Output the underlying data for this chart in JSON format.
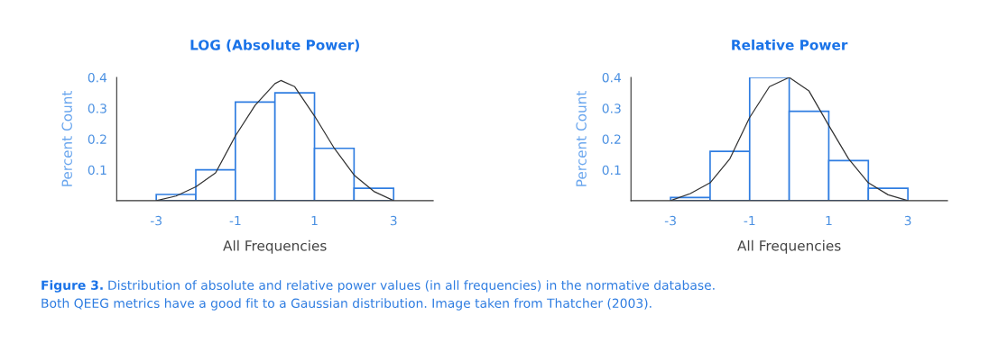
{
  "chart_data": [
    {
      "type": "histogram",
      "title": "LOG (Absolute Power)",
      "xlabel": "All Frequencies",
      "ylabel": "Percent Count",
      "bins": [
        -3,
        -2,
        -1,
        0,
        1,
        2,
        3
      ],
      "series": [
        {
          "color": "#2f7de1",
          "values": [
            0.02,
            0.1,
            0.32,
            0.35,
            0.17,
            0.04
          ]
        },
        {
          "type": "line",
          "color": "#333333",
          "x": [
            -3,
            -2.5,
            -2,
            -1.5,
            -1,
            -0.5,
            0,
            0.15,
            0.5,
            1,
            1.5,
            2,
            2.5,
            3
          ],
          "values": [
            0,
            0.015,
            0.045,
            0.09,
            0.21,
            0.31,
            0.38,
            0.39,
            0.37,
            0.275,
            0.17,
            0.083,
            0.03,
            0
          ]
        }
      ],
      "xlim": [
        -4,
        4
      ],
      "xticks": [
        -3,
        -1,
        1,
        3
      ],
      "ylim": [
        0,
        0.4
      ],
      "yticks": [
        0.1,
        0.2,
        0.3,
        0.4
      ],
      "grid": false,
      "legend": false,
      "annotations": [
        "Figure 3.",
        "Distribution of absolute and relative power values (in all frequencies) in the normative database.",
        "Both QEEG metrics have a good fit to a Gaussian distribution. Image taken from Thatcher (2003)."
      ]
    },
    {
      "type": "histogram",
      "title": "Relative Power",
      "xlabel": "All Frequencies",
      "ylabel": "Percent Count",
      "bins": [
        -3,
        -2,
        -1,
        0,
        1,
        2,
        3
      ],
      "series": [
        {
          "color": "#2f7de1",
          "values": [
            0.01,
            0.16,
            0.4,
            0.29,
            0.13,
            0.04
          ]
        },
        {
          "type": "line",
          "color": "#333333",
          "x": [
            -3,
            -2.5,
            -2,
            -1.5,
            -1,
            -0.5,
            0,
            0.5,
            1,
            1.5,
            2,
            2.5,
            3
          ],
          "values": [
            0,
            0.023,
            0.058,
            0.136,
            0.27,
            0.37,
            0.4,
            0.356,
            0.244,
            0.136,
            0.058,
            0.019,
            0
          ]
        }
      ],
      "xlim": [
        -4,
        4
      ],
      "xticks": [
        -3,
        -1,
        1,
        3
      ],
      "ylim": [
        0,
        0.4
      ],
      "yticks": [
        0.1,
        0.2,
        0.3,
        0.4
      ],
      "grid": false,
      "legend": false
    }
  ]
}
